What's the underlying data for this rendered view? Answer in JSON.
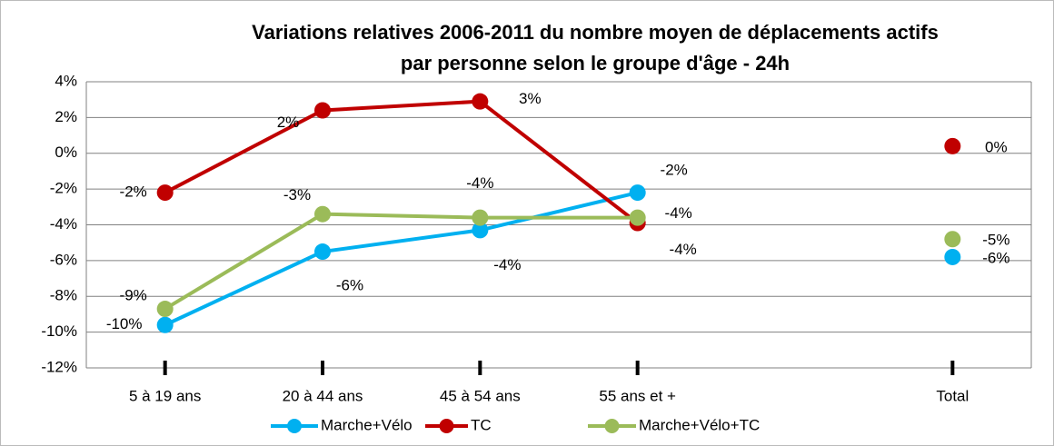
{
  "chart_data": {
    "type": "line",
    "title": [
      "Variations relatives 2006-2011 du nombre moyen de déplacements actifs",
      "par personne selon le groupe d'âge - 24h"
    ],
    "categories": [
      "5 à 19 ans",
      "20 à 44 ans",
      "45 à 54 ans",
      "55 ans et +",
      null,
      "Total"
    ],
    "series": [
      {
        "name": "Marche+Vélo",
        "color": "#00b0f0",
        "values": [
          -9.6,
          -5.5,
          -4.3,
          -2.2,
          null,
          -5.8
        ],
        "value_labels": [
          "-10%",
          "-6%",
          "-4%",
          "-2%",
          null,
          "-6%"
        ]
      },
      {
        "name": "TC",
        "color": "#c00000",
        "values": [
          -2.2,
          2.4,
          2.9,
          -3.9,
          null,
          0.4
        ],
        "value_labels": [
          "-2%",
          "2%",
          "3%",
          "-4%",
          null,
          "0%"
        ]
      },
      {
        "name": "Marche+Vélo+TC",
        "color": "#9bbb59",
        "values": [
          -8.7,
          -3.4,
          -3.6,
          -3.6,
          null,
          -4.8
        ],
        "value_labels": [
          "-9%",
          "-3%",
          "-4%",
          "-4%",
          null,
          "-5%"
        ]
      }
    ],
    "ylim": [
      -12,
      4
    ],
    "yticks": [
      {
        "value": -12,
        "label": "-12%"
      },
      {
        "value": -10,
        "label": "-10%"
      },
      {
        "value": -8,
        "label": "-8%"
      },
      {
        "value": -6,
        "label": "-6%"
      },
      {
        "value": -4,
        "label": "-4%"
      },
      {
        "value": -2,
        "label": "-2%"
      },
      {
        "value": 0,
        "label": "0%"
      },
      {
        "value": 2,
        "label": "2%"
      },
      {
        "value": 4,
        "label": "4%"
      }
    ],
    "grid": true,
    "legend": "bottom"
  }
}
